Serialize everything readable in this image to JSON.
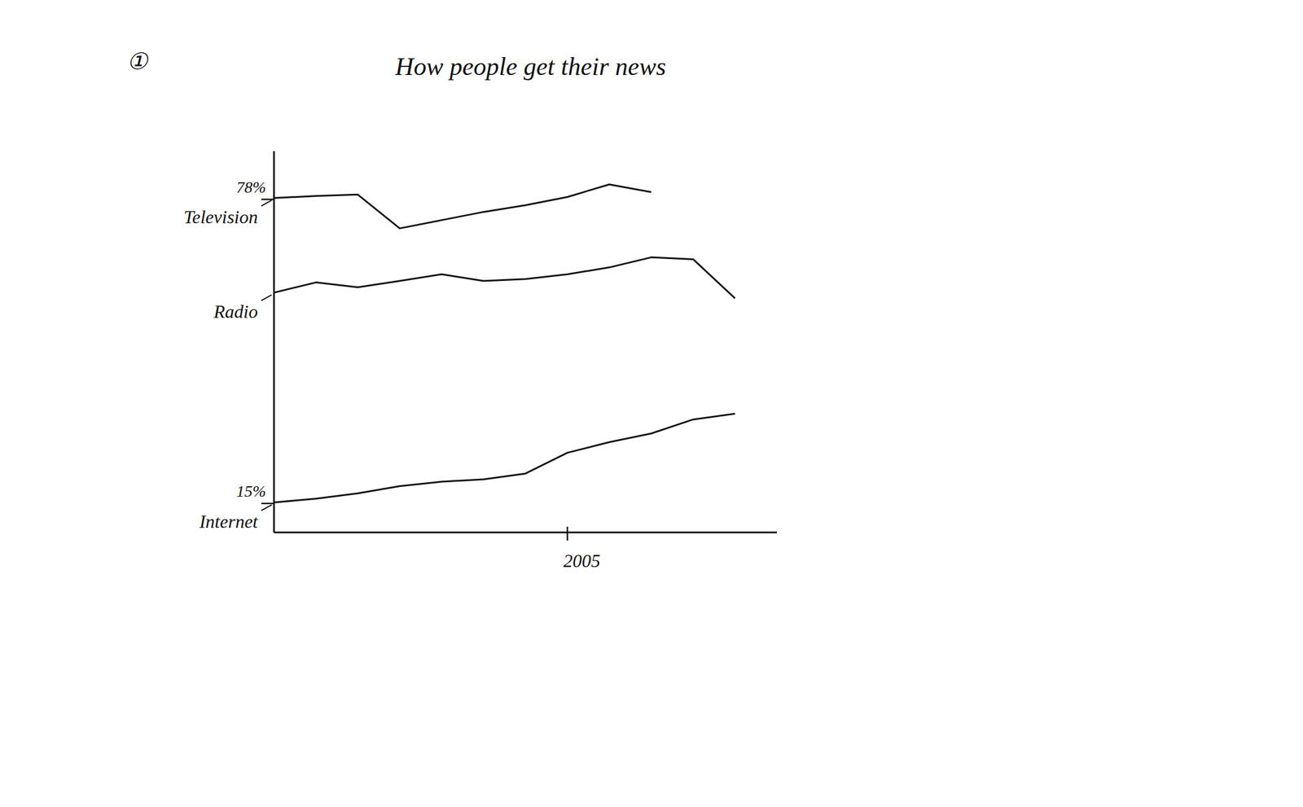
{
  "chart_data": {
    "type": "line",
    "title": "How people get their news",
    "annotations": [
      "①"
    ],
    "x": [
      1998,
      1999,
      2000,
      2001,
      2002,
      2003,
      2004,
      2005,
      2006,
      2007,
      2008,
      2009
    ],
    "series": [
      {
        "name": "Television",
        "color": "#111111",
        "values": [
          78.3,
          78.7,
          79.0,
          72.0,
          73.7,
          75.4,
          76.8,
          78.5,
          81.1,
          79.5,
          null,
          null
        ]
      },
      {
        "name": "Radio",
        "color": "#111111",
        "values": [
          58.7,
          60.8,
          59.8,
          61.1,
          62.5,
          61.1,
          61.5,
          62.5,
          63.9,
          66.0,
          65.6,
          57.5
        ]
      },
      {
        "name": "Internet",
        "color": "#111111",
        "values": [
          15.2,
          16.0,
          17.1,
          18.6,
          19.5,
          20.0,
          21.2,
          25.5,
          27.7,
          29.5,
          32.4,
          33.6
        ]
      }
    ],
    "xlim": [
      1998,
      2010
    ],
    "xticks": [
      2005
    ],
    "ylim": [
      9,
      88
    ],
    "yticks": [
      {
        "value": 78,
        "label": "78%"
      },
      {
        "value": 15,
        "label": "15%"
      }
    ],
    "grid": false
  }
}
